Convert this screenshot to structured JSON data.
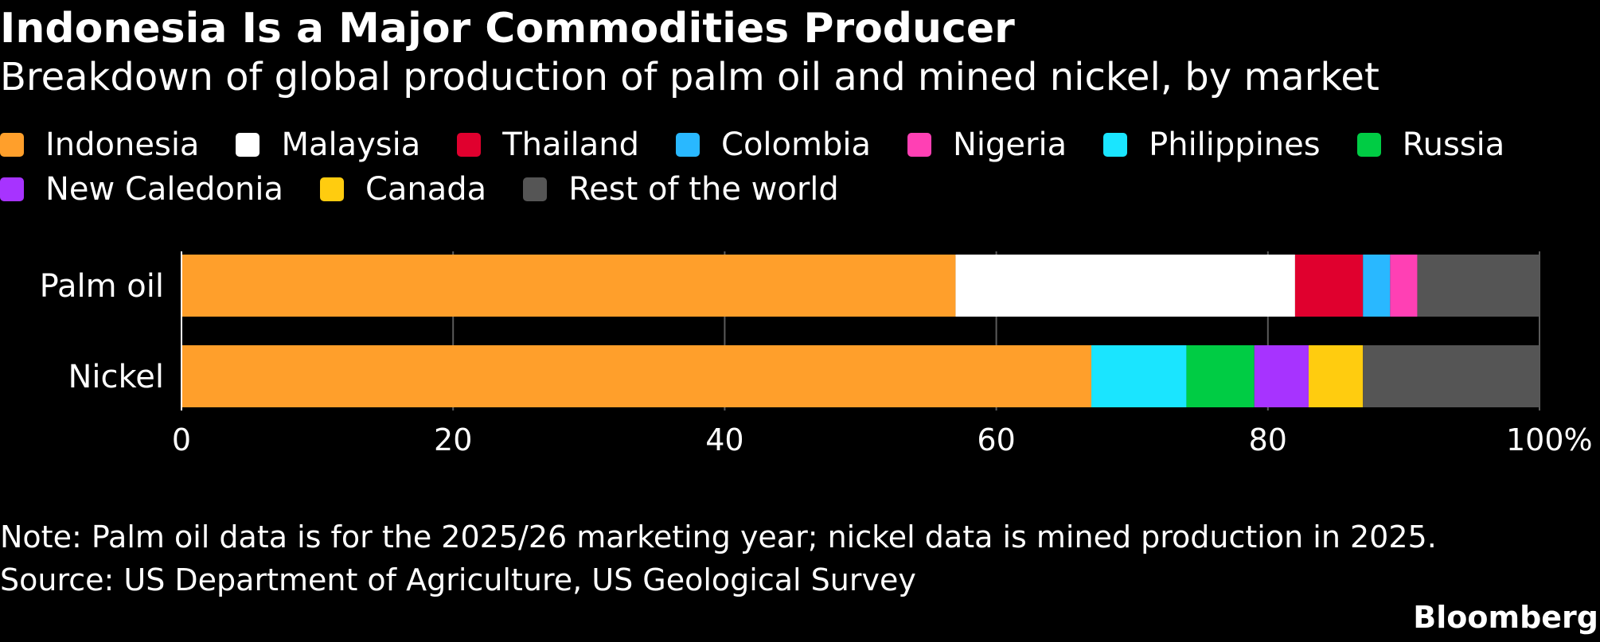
{
  "header": {
    "title": "Indonesia Is a Major Commodities Producer",
    "subtitle": "Breakdown of global production of palm oil and mined nickel, by market"
  },
  "legend": [
    {
      "label": "Indonesia",
      "color": "#ff9f2b"
    },
    {
      "label": "Malaysia",
      "color": "#ffffff"
    },
    {
      "label": "Thailand",
      "color": "#e0002e"
    },
    {
      "label": "Colombia",
      "color": "#29b8ff"
    },
    {
      "label": "Nigeria",
      "color": "#ff40b4"
    },
    {
      "label": "Philippines",
      "color": "#1ae5ff"
    },
    {
      "label": "Russia",
      "color": "#00cc44"
    },
    {
      "label": "New Caledonia",
      "color": "#a733ff"
    },
    {
      "label": "Canada",
      "color": "#ffcc0f"
    },
    {
      "label": "Rest of the world",
      "color": "#555555"
    }
  ],
  "chart_data": {
    "type": "bar",
    "orientation": "horizontal",
    "stacked": true,
    "categories": [
      "Palm oil",
      "Nickel"
    ],
    "xlim": [
      0,
      100
    ],
    "x_ticks": [
      "0",
      "20",
      "40",
      "60",
      "80",
      "100%"
    ],
    "grid": true,
    "legend_position": "top",
    "series": [
      {
        "name": "Indonesia",
        "values": [
          57,
          67
        ]
      },
      {
        "name": "Malaysia",
        "values": [
          25,
          0
        ]
      },
      {
        "name": "Thailand",
        "values": [
          5,
          0
        ]
      },
      {
        "name": "Colombia",
        "values": [
          2,
          0
        ]
      },
      {
        "name": "Nigeria",
        "values": [
          2,
          0
        ]
      },
      {
        "name": "Philippines",
        "values": [
          0,
          7
        ]
      },
      {
        "name": "Russia",
        "values": [
          0,
          5
        ]
      },
      {
        "name": "New Caledonia",
        "values": [
          0,
          4
        ]
      },
      {
        "name": "Canada",
        "values": [
          0,
          4
        ]
      },
      {
        "name": "Rest of the world",
        "values": [
          9,
          13
        ]
      }
    ]
  },
  "footer": {
    "note": "Note: Palm oil data is for the 2025/26 marketing year; nickel data is mined production in 2025.",
    "source": "Source: US Department of Agriculture, US Geological Survey",
    "brand": "Bloomberg"
  }
}
